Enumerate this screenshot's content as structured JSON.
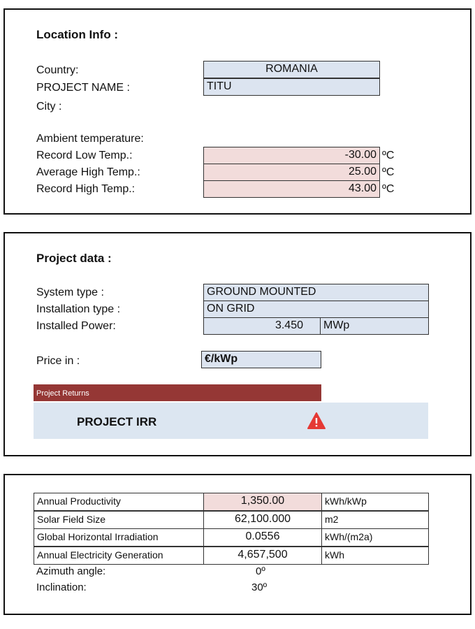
{
  "location": {
    "title": "Location Info :",
    "country_label": "Country:",
    "country": "ROMANIA",
    "project_name_label": "PROJECT NAME  :",
    "project_name": "TITU",
    "city_label": "City :",
    "ambient_label": "Ambient temperature:",
    "temps": [
      {
        "label": "Record Low Temp.:",
        "value": "-30.00",
        "unit": "ºC"
      },
      {
        "label": "Average High Temp.:",
        "value": "25.00",
        "unit": "ºC"
      },
      {
        "label": "Record High Temp.:",
        "value": "43.00",
        "unit": "ºC"
      }
    ]
  },
  "project": {
    "title": "Project data :",
    "system_type_label": "System type :",
    "system_type": "GROUND MOUNTED",
    "installation_type_label": "Installation type :",
    "installation_type": "ON GRID",
    "installed_power_label": "Installed Power:",
    "installed_power": "3.450",
    "installed_power_unit": "MWp",
    "price_label": "Price in :",
    "price_unit": "€/kWp",
    "returns_header": "Project Returns",
    "irr_label": "PROJECT IRR"
  },
  "metrics": {
    "rows": [
      [
        "Annual Productivity",
        "1,350.00",
        "kWh/kWp"
      ],
      [
        "Solar Field Size",
        "62,100.000",
        "m2"
      ],
      [
        "Global Horizontal Irradiation",
        "0.0556",
        "kWh/(m2a)"
      ],
      [
        "Annual Electricity Generation",
        "4,657,500",
        "kWh"
      ]
    ],
    "azimuth_label": "Azimuth angle:",
    "azimuth": "0º",
    "inclination_label": "Inclination:",
    "inclination": "30º"
  }
}
